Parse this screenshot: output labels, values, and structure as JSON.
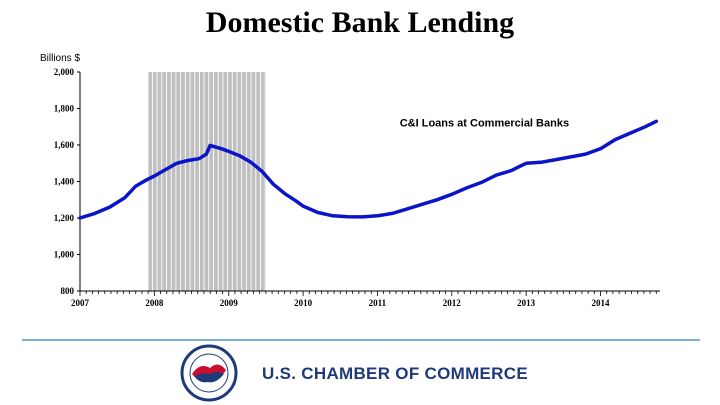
{
  "title": "Domestic Bank Lending",
  "colors": {
    "line": "#0a14c8",
    "recession": "#c0c0c0",
    "divider": "#7fb0cf",
    "brand_blue": "#1f3a7a",
    "brand_red": "#c8102e"
  },
  "footer": {
    "brand_name": "U.S. CHAMBER OF COMMERCE",
    "logo_icon": "chamber-seal-icon"
  },
  "chart_data": {
    "type": "line",
    "title": "Domestic Bank Lending",
    "ylabel": "Billions $",
    "xlabel": "",
    "ylim": [
      800,
      2000
    ],
    "xlim": [
      2007.0,
      2014.8
    ],
    "y_ticks": [
      800,
      1000,
      1200,
      1400,
      1600,
      1800,
      2000
    ],
    "y_tick_labels": [
      "800",
      "1,000",
      "1,200",
      "1,400",
      "1,600",
      "1,800",
      "2,000"
    ],
    "x_ticks": [
      2007,
      2008,
      2009,
      2010,
      2011,
      2012,
      2013,
      2014
    ],
    "x_tick_labels": [
      "2007",
      "2008",
      "2009",
      "2010",
      "2011",
      "2012",
      "2013",
      "2014"
    ],
    "grid": false,
    "recession_band": [
      2007.92,
      2009.5
    ],
    "series": [
      {
        "name": "C&I Loans at Commercial Banks",
        "x": [
          2007.0,
          2007.2,
          2007.4,
          2007.6,
          2007.75,
          2007.9,
          2008.0,
          2008.15,
          2008.3,
          2008.45,
          2008.6,
          2008.7,
          2008.75,
          2008.9,
          2009.0,
          2009.15,
          2009.3,
          2009.45,
          2009.6,
          2009.75,
          2009.9,
          2010.0,
          2010.2,
          2010.4,
          2010.6,
          2010.8,
          2011.0,
          2011.2,
          2011.4,
          2011.6,
          2011.8,
          2012.0,
          2012.2,
          2012.4,
          2012.6,
          2012.8,
          2012.95,
          2013.0,
          2013.2,
          2013.4,
          2013.6,
          2013.8,
          2014.0,
          2014.2,
          2014.4,
          2014.6,
          2014.75
        ],
        "values": [
          1200,
          1225,
          1260,
          1310,
          1375,
          1410,
          1430,
          1465,
          1500,
          1515,
          1525,
          1550,
          1598,
          1580,
          1565,
          1540,
          1505,
          1455,
          1385,
          1335,
          1295,
          1265,
          1230,
          1212,
          1207,
          1206,
          1212,
          1225,
          1250,
          1275,
          1300,
          1330,
          1365,
          1395,
          1435,
          1460,
          1490,
          1500,
          1505,
          1520,
          1535,
          1550,
          1580,
          1630,
          1665,
          1700,
          1730
        ]
      }
    ],
    "annotations": [
      {
        "text": "C&I Loans at Commercial Banks",
        "x": 2011.3,
        "y": 1800
      }
    ]
  }
}
